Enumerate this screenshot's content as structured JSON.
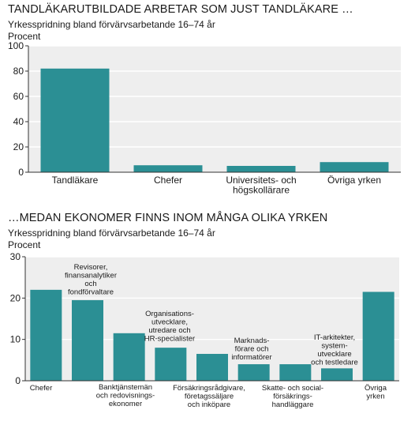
{
  "colors": {
    "bar": "#2b8f94",
    "plot_bg": "#eeeeee",
    "gridline": "#ffffff",
    "axis": "#333333"
  },
  "chart_data": [
    {
      "type": "bar",
      "title": "TANDLÄKARUTBILDADE ARBETAR SOM JUST TANDLÄKARE …",
      "subtitle": "Yrkesspridning bland förvärvsarbetande 16–74 år",
      "ylabel": "Procent",
      "ylim": [
        0,
        100
      ],
      "yticks": [
        0,
        20,
        40,
        60,
        80,
        100
      ],
      "grid": true,
      "categories": [
        [
          "Tandläkare"
        ],
        [
          "Chefer"
        ],
        [
          "Universitets- och",
          "högskollärare"
        ],
        [
          "Övriga yrken"
        ]
      ],
      "values": [
        82,
        5.5,
        5,
        8
      ]
    },
    {
      "type": "bar",
      "title": "…MEDAN EKONOMER FINNS INOM MÅNGA OLIKA YRKEN",
      "subtitle": "Yrkesspridning bland förvärvsarbetande 16–74 år",
      "ylabel": "Procent",
      "ylim": [
        0,
        30
      ],
      "yticks": [
        0,
        10,
        20,
        30
      ],
      "grid": true,
      "categories": [
        [
          "Chefer"
        ],
        [
          "Revisorer,",
          "finansanalytiker",
          "och",
          "fondförvaltare"
        ],
        [
          "Banktjänstemän",
          "och redovisnings-",
          "ekonomer"
        ],
        [
          "Organisations-",
          "utvecklare,",
          "utredare och",
          "HR-specialister"
        ],
        [
          "Försäkringsrådgivare,",
          "företagssäljare",
          "och inköpare"
        ],
        [
          "Marknads-",
          "förare och",
          "informatörer"
        ],
        [
          "Skatte- och social-",
          "försäkrings-",
          "handläggare"
        ],
        [
          "IT-arkitekter,",
          "system-",
          "utvecklare",
          "och testledare"
        ],
        [
          "Övriga",
          "yrken"
        ]
      ],
      "values": [
        22,
        19.5,
        11.5,
        8,
        6.5,
        4,
        4,
        3,
        21.5
      ]
    }
  ]
}
